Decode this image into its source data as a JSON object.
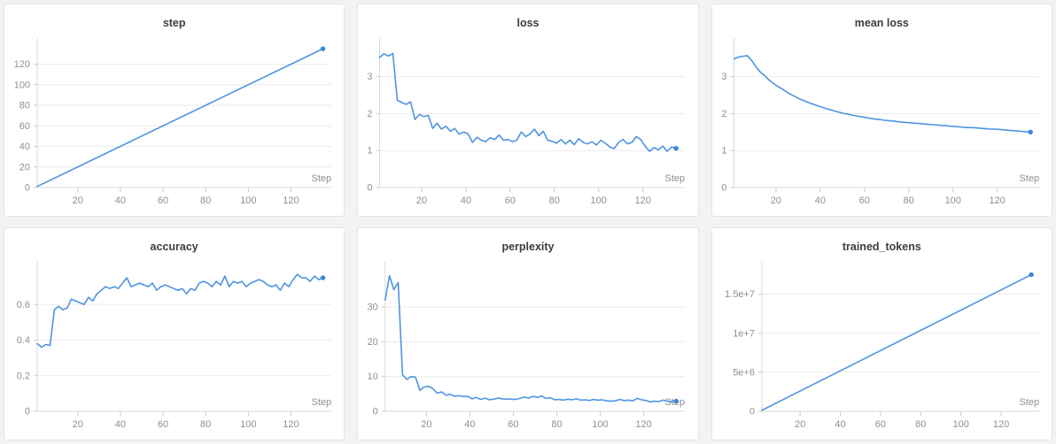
{
  "page": {
    "background": "#f3f3f4"
  },
  "colors": {
    "line": "#4f94e0",
    "marker": "#3b86d8",
    "grid": "#ebebeb",
    "axis": "#dadada",
    "tick": "#c8c8c8",
    "tick_label": "#8f8f8f",
    "title": "#3d3d3d",
    "panel_bg": "#ffffff",
    "panel_border": "#e3e3e3"
  },
  "chart_data": [
    {
      "id": "step",
      "type": "line",
      "title": "step",
      "xlabel": "Step",
      "grid": "horizontal",
      "legend": "none",
      "end_marker": true,
      "xlim": [
        1,
        139
      ],
      "ylim": [
        0,
        142
      ],
      "xticks": [
        20,
        40,
        60,
        80,
        100,
        120
      ],
      "yticks": [
        0,
        20,
        40,
        60,
        80,
        100,
        120
      ],
      "ytick_labels": [
        "0",
        "20",
        "40",
        "60",
        "80",
        "100",
        "120"
      ],
      "x": [
        1,
        135
      ],
      "y": [
        1,
        135
      ]
    },
    {
      "id": "loss",
      "type": "line",
      "title": "loss",
      "xlabel": "Step",
      "grid": "horizontal",
      "legend": "none",
      "end_marker": true,
      "xlim": [
        1,
        139
      ],
      "ylim": [
        0,
        3.95
      ],
      "xticks": [
        20,
        40,
        60,
        80,
        100,
        120
      ],
      "yticks": [
        0,
        1,
        2,
        3
      ],
      "ytick_labels": [
        "0",
        "1",
        "2",
        "3"
      ],
      "x": [
        1,
        3,
        5,
        7,
        9,
        11,
        13,
        15,
        17,
        19,
        21,
        23,
        25,
        27,
        29,
        31,
        33,
        35,
        37,
        39,
        41,
        43,
        45,
        47,
        49,
        51,
        53,
        55,
        57,
        59,
        61,
        63,
        65,
        67,
        69,
        71,
        73,
        75,
        77,
        79,
        81,
        83,
        85,
        87,
        89,
        91,
        93,
        95,
        97,
        99,
        101,
        103,
        105,
        107,
        109,
        111,
        113,
        115,
        117,
        119,
        121,
        123,
        125,
        127,
        129,
        131,
        133,
        135
      ],
      "y": [
        3.52,
        3.62,
        3.56,
        3.63,
        2.36,
        2.3,
        2.25,
        2.32,
        1.84,
        1.98,
        1.92,
        1.95,
        1.6,
        1.74,
        1.58,
        1.66,
        1.52,
        1.6,
        1.44,
        1.5,
        1.45,
        1.22,
        1.36,
        1.28,
        1.24,
        1.35,
        1.3,
        1.42,
        1.28,
        1.3,
        1.24,
        1.28,
        1.5,
        1.38,
        1.45,
        1.58,
        1.4,
        1.52,
        1.28,
        1.25,
        1.2,
        1.3,
        1.18,
        1.28,
        1.16,
        1.32,
        1.22,
        1.18,
        1.24,
        1.15,
        1.28,
        1.2,
        1.1,
        1.05,
        1.22,
        1.3,
        1.18,
        1.22,
        1.38,
        1.3,
        1.12,
        0.98,
        1.08,
        1.02,
        1.12,
        0.98,
        1.1,
        1.06
      ]
    },
    {
      "id": "mean_loss",
      "type": "line",
      "title": "mean loss",
      "xlabel": "Step",
      "grid": "horizontal",
      "legend": "none",
      "end_marker": true,
      "xlim": [
        1,
        139
      ],
      "ylim": [
        0,
        3.95
      ],
      "xticks": [
        20,
        40,
        60,
        80,
        100,
        120
      ],
      "yticks": [
        0,
        1,
        2,
        3
      ],
      "ytick_labels": [
        "0",
        "1",
        "2",
        "3"
      ],
      "x": [
        1,
        3,
        5,
        7,
        9,
        11,
        13,
        15,
        17,
        19,
        21,
        23,
        25,
        27,
        29,
        31,
        33,
        35,
        37,
        39,
        41,
        43,
        45,
        47,
        49,
        51,
        53,
        55,
        57,
        59,
        61,
        63,
        65,
        67,
        69,
        71,
        73,
        75,
        77,
        79,
        81,
        83,
        85,
        87,
        89,
        91,
        93,
        95,
        97,
        99,
        101,
        103,
        105,
        107,
        109,
        111,
        113,
        115,
        117,
        119,
        121,
        123,
        125,
        127,
        129,
        131,
        133,
        135
      ],
      "y": [
        3.48,
        3.53,
        3.55,
        3.57,
        3.44,
        3.26,
        3.12,
        3.02,
        2.9,
        2.81,
        2.73,
        2.66,
        2.58,
        2.51,
        2.45,
        2.39,
        2.34,
        2.29,
        2.25,
        2.21,
        2.17,
        2.13,
        2.1,
        2.06,
        2.03,
        2.0,
        1.98,
        1.95,
        1.93,
        1.91,
        1.89,
        1.87,
        1.85,
        1.84,
        1.82,
        1.81,
        1.8,
        1.78,
        1.77,
        1.76,
        1.75,
        1.74,
        1.73,
        1.72,
        1.71,
        1.7,
        1.69,
        1.68,
        1.67,
        1.66,
        1.65,
        1.64,
        1.63,
        1.62,
        1.62,
        1.61,
        1.6,
        1.59,
        1.58,
        1.58,
        1.57,
        1.56,
        1.55,
        1.54,
        1.53,
        1.52,
        1.51,
        1.5
      ]
    },
    {
      "id": "accuracy",
      "type": "line",
      "title": "accuracy",
      "xlabel": "Step",
      "grid": "horizontal",
      "legend": "none",
      "end_marker": true,
      "xlim": [
        1,
        139
      ],
      "ylim": [
        0,
        0.82
      ],
      "xticks": [
        20,
        40,
        60,
        80,
        100,
        120
      ],
      "yticks": [
        0,
        0.2,
        0.4,
        0.6
      ],
      "ytick_labels": [
        "0",
        "0.2",
        "0.4",
        "0.6"
      ],
      "x": [
        1,
        3,
        5,
        7,
        9,
        11,
        13,
        15,
        17,
        19,
        21,
        23,
        25,
        27,
        29,
        31,
        33,
        35,
        37,
        39,
        41,
        43,
        45,
        47,
        49,
        51,
        53,
        55,
        57,
        59,
        61,
        63,
        65,
        67,
        69,
        71,
        73,
        75,
        77,
        79,
        81,
        83,
        85,
        87,
        89,
        91,
        93,
        95,
        97,
        99,
        101,
        103,
        105,
        107,
        109,
        111,
        113,
        115,
        117,
        119,
        121,
        123,
        125,
        127,
        129,
        131,
        133,
        135
      ],
      "y": [
        0.38,
        0.36,
        0.375,
        0.37,
        0.57,
        0.59,
        0.57,
        0.58,
        0.63,
        0.62,
        0.61,
        0.6,
        0.64,
        0.62,
        0.66,
        0.68,
        0.7,
        0.69,
        0.7,
        0.69,
        0.72,
        0.75,
        0.7,
        0.71,
        0.72,
        0.71,
        0.7,
        0.72,
        0.68,
        0.7,
        0.71,
        0.7,
        0.69,
        0.68,
        0.69,
        0.66,
        0.69,
        0.68,
        0.72,
        0.73,
        0.72,
        0.7,
        0.73,
        0.71,
        0.76,
        0.7,
        0.73,
        0.72,
        0.73,
        0.7,
        0.72,
        0.73,
        0.74,
        0.73,
        0.71,
        0.7,
        0.71,
        0.68,
        0.72,
        0.7,
        0.74,
        0.77,
        0.75,
        0.75,
        0.73,
        0.76,
        0.74,
        0.75
      ]
    },
    {
      "id": "perplexity",
      "type": "line",
      "title": "perplexity",
      "xlabel": "Step",
      "grid": "horizontal",
      "legend": "none",
      "end_marker": true,
      "xlim": [
        1,
        139
      ],
      "ylim": [
        0,
        42
      ],
      "xticks": [
        20,
        40,
        60,
        80,
        100,
        120
      ],
      "yticks": [
        0,
        10,
        20,
        30
      ],
      "ytick_labels": [
        "0",
        "10",
        "20",
        "30"
      ],
      "x": [
        1,
        3,
        5,
        7,
        9,
        11,
        13,
        15,
        17,
        19,
        21,
        23,
        25,
        27,
        29,
        31,
        33,
        35,
        37,
        39,
        41,
        43,
        45,
        47,
        49,
        51,
        53,
        55,
        57,
        59,
        61,
        63,
        65,
        67,
        69,
        71,
        73,
        75,
        77,
        79,
        81,
        83,
        85,
        87,
        89,
        91,
        93,
        95,
        97,
        99,
        101,
        103,
        105,
        107,
        109,
        111,
        113,
        115,
        117,
        119,
        121,
        123,
        125,
        127,
        129,
        131,
        133,
        135
      ],
      "y": [
        32,
        39,
        35,
        37,
        10.5,
        9.2,
        10,
        9.8,
        6.0,
        7.0,
        7.2,
        6.5,
        5.2,
        5.6,
        4.6,
        4.9,
        4.3,
        4.5,
        4.2,
        4.3,
        3.6,
        4.0,
        3.4,
        3.8,
        3.3,
        3.5,
        3.8,
        3.6,
        3.5,
        3.5,
        3.4,
        3.7,
        4.1,
        3.8,
        4.3,
        4.0,
        4.4,
        3.7,
        3.9,
        3.3,
        3.4,
        3.2,
        3.5,
        3.3,
        3.6,
        3.2,
        3.3,
        3.1,
        3.4,
        3.2,
        3.3,
        3.0,
        2.9,
        3.0,
        3.4,
        3.1,
        3.2,
        3.0,
        3.7,
        3.3,
        3.1,
        2.7,
        2.9,
        2.8,
        3.2,
        2.9,
        2.7,
        2.9
      ]
    },
    {
      "id": "trained_tokens",
      "type": "line",
      "title": "trained_tokens",
      "xlabel": "Step",
      "grid": "horizontal",
      "legend": "none",
      "end_marker": true,
      "xlim": [
        1,
        139
      ],
      "ylim": [
        0,
        18700000
      ],
      "xticks": [
        20,
        40,
        60,
        80,
        100,
        120
      ],
      "yticks": [
        0,
        5000000,
        10000000,
        15000000
      ],
      "ytick_labels": [
        "0",
        "5e+6",
        "1e+7",
        "1.5e+7"
      ],
      "x": [
        1,
        135
      ],
      "y": [
        130000,
        17500000
      ]
    }
  ]
}
